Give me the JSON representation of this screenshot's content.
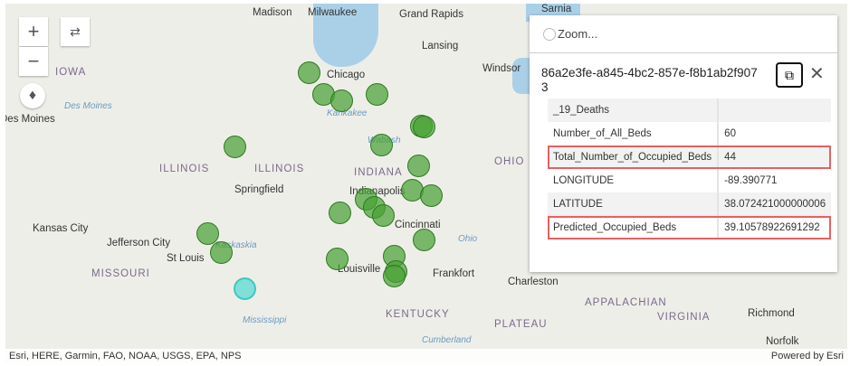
{
  "map": {
    "labels": {
      "madison": "Madison",
      "milwaukee": "Milwaukee",
      "grand_rapids": "Grand Rapids",
      "sarnia": "Sarnia",
      "lansing": "Lansing",
      "chicago": "Chicago",
      "windsor": "Windsor",
      "iowa": "IOWA",
      "des_moines": "Des Moines",
      "des_moines_river": "Des Moines",
      "kankakee": "Kankakee",
      "wabash": "Wabash",
      "illinois_state": "ILLINOIS",
      "illinois_river": "ILLINOIS",
      "indiana": "INDIANA",
      "springfield": "Springfield",
      "ohio": "OHIO",
      "indianapolis": "Indianapolis",
      "kansas_city": "Kansas City",
      "jefferson_city": "Jefferson City",
      "st_louis": "St Louis",
      "missouri": "MISSOURI",
      "cincinnati": "Cincinnati",
      "louisville": "Louisville",
      "frankfort": "Frankfort",
      "charleston": "Charleston",
      "kaskaskia": "Kaskaskia",
      "ohio_river": "Ohio",
      "kentucky": "KENTUCKY",
      "virginia": "VIRGINIA",
      "richmond": "Richmond",
      "norfolk": "Norfolk",
      "cumberland": "Cumberland",
      "plateau": "PLATEAU",
      "mississippi": "Mississippi",
      "appalachian": "APPALACHIAN"
    },
    "point_color": "#46a032",
    "selected_color": "#7fe0d8"
  },
  "controls": {
    "zoom_in": "+",
    "zoom_out": "−"
  },
  "attribution": {
    "left": "Esri, HERE, Garmin, FAO, NOAA, USGS, EPA, NPS",
    "right": "Powered by Esri"
  },
  "popup": {
    "zoom_label": "Zoom...",
    "title": "86a2e3fe-a845-4bc2-857e-f8b1ab2f9073",
    "rows": [
      {
        "field": "_19_Deaths",
        "value": ""
      },
      {
        "field": "Number_of_All_Beds",
        "value": "60"
      },
      {
        "field": "Total_Number_of_Occupied_Beds",
        "value": "44",
        "highlighted": true
      },
      {
        "field": "LONGITUDE",
        "value": "-89.390771"
      },
      {
        "field": "LATITUDE",
        "value": "38.072421000000006"
      },
      {
        "field": "Predicted_Occupied_Beds",
        "value": "39.10578922691292",
        "highlighted": true
      }
    ]
  }
}
